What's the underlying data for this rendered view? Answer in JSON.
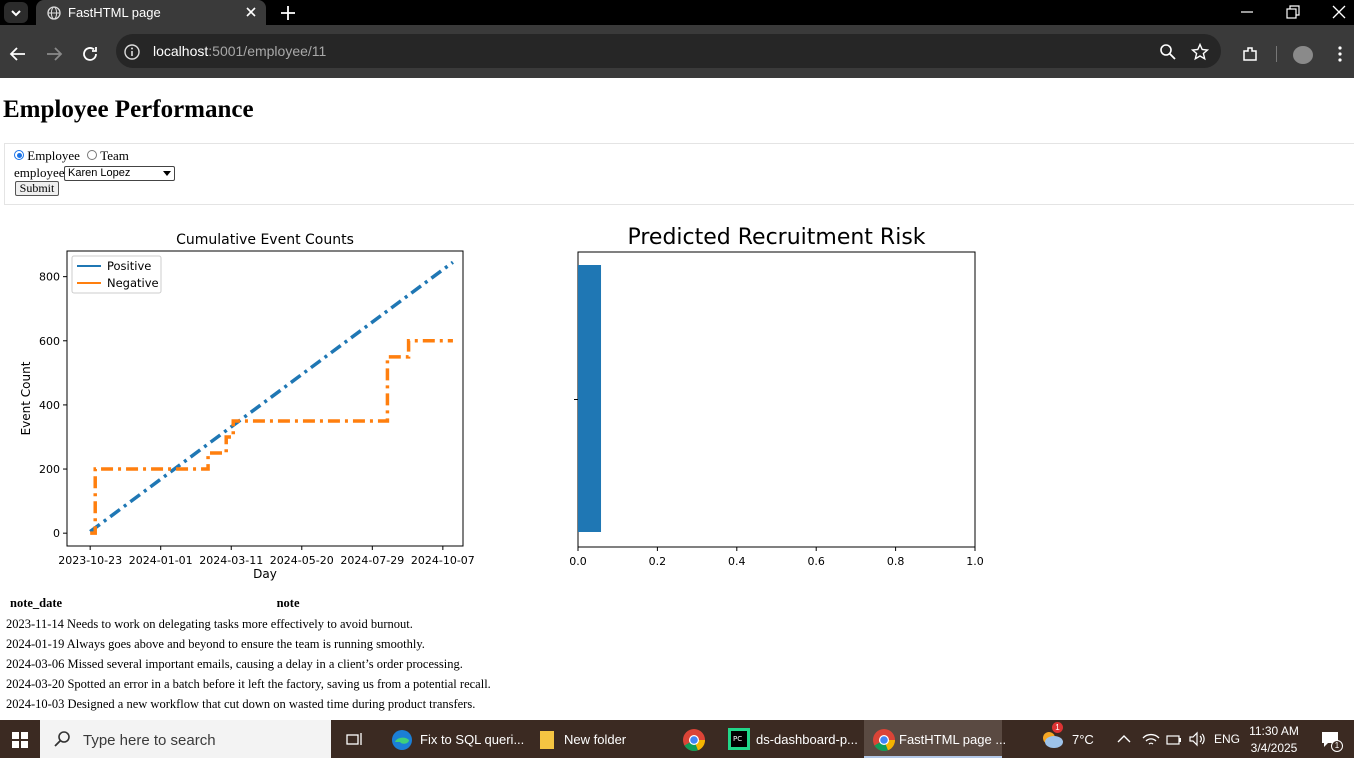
{
  "browser": {
    "tab_title": "FastHTML page",
    "url_host": "localhost",
    "url_rest": ":5001/employee/11"
  },
  "page": {
    "title": "Employee Performance",
    "radio_employee": "Employee",
    "radio_team": "Team",
    "selected_mode": "Employee",
    "employee_label": "employee",
    "employee_selected": "Karen Lopez",
    "submit_label": "Submit"
  },
  "chart_data": [
    {
      "type": "line",
      "title": "Cumulative Event Counts",
      "xlabel": "Day",
      "ylabel": "Event Count",
      "xticks": [
        "2023-10-23",
        "2024-01-01",
        "2024-03-11",
        "2024-05-20",
        "2024-07-29",
        "2024-10-07"
      ],
      "yticks": [
        0,
        200,
        400,
        600,
        800
      ],
      "xlim": [
        "2023-09-30",
        "2024-10-27"
      ],
      "ylim": [
        -40,
        880
      ],
      "legend_position": "top-left",
      "series": [
        {
          "name": "Positive",
          "color": "#1f77b4",
          "linestyle": "dash-dot",
          "points": [
            [
              "2023-10-23",
              5
            ],
            [
              "2024-10-17",
              845
            ]
          ]
        },
        {
          "name": "Negative",
          "color": "#ff7f0e",
          "linestyle": "dash-dot",
          "steps": [
            [
              "2023-10-23",
              0
            ],
            [
              "2023-10-28",
              0
            ],
            [
              "2023-10-28",
              200
            ],
            [
              "2024-02-17",
              200
            ],
            [
              "2024-02-17",
              250
            ],
            [
              "2024-03-06",
              250
            ],
            [
              "2024-03-06",
              300
            ],
            [
              "2024-03-13",
              300
            ],
            [
              "2024-03-13",
              350
            ],
            [
              "2024-08-13",
              350
            ],
            [
              "2024-08-13",
              550
            ],
            [
              "2024-09-03",
              550
            ],
            [
              "2024-09-03",
              600
            ],
            [
              "2024-10-17",
              600
            ]
          ]
        }
      ]
    },
    {
      "type": "bar",
      "orientation": "horizontal",
      "title": "Predicted Recruitment Risk",
      "xticks": [
        0.0,
        0.2,
        0.4,
        0.6,
        0.8,
        1.0
      ],
      "xlim": [
        0,
        1
      ],
      "values": [
        0.058
      ],
      "color": "#1f77b4"
    }
  ],
  "notes": {
    "headers": [
      "note_date",
      "note"
    ],
    "rows": [
      [
        "2023-11-14",
        "Needs to work on delegating tasks more effectively to avoid burnout."
      ],
      [
        "2024-01-19",
        "Always goes above and beyond to ensure the team is running smoothly."
      ],
      [
        "2024-03-06",
        "Missed several important emails, causing a delay in a client’s order processing."
      ],
      [
        "2024-03-20",
        "Spotted an error in a batch before it left the factory, saving us from a potential recall."
      ],
      [
        "2024-10-03",
        "Designed a new workflow that cut down on wasted time during product transfers."
      ]
    ]
  },
  "taskbar": {
    "search_placeholder": "Type here to search",
    "apps": [
      "Fix to SQL queri...",
      "New folder",
      "ds-dashboard-p...",
      "FastHTML page ..."
    ],
    "weather": "7°C",
    "weather_badge": "1",
    "language": "ENG",
    "time": "11:30 AM",
    "date": "3/4/2025",
    "notification_count": "1"
  }
}
